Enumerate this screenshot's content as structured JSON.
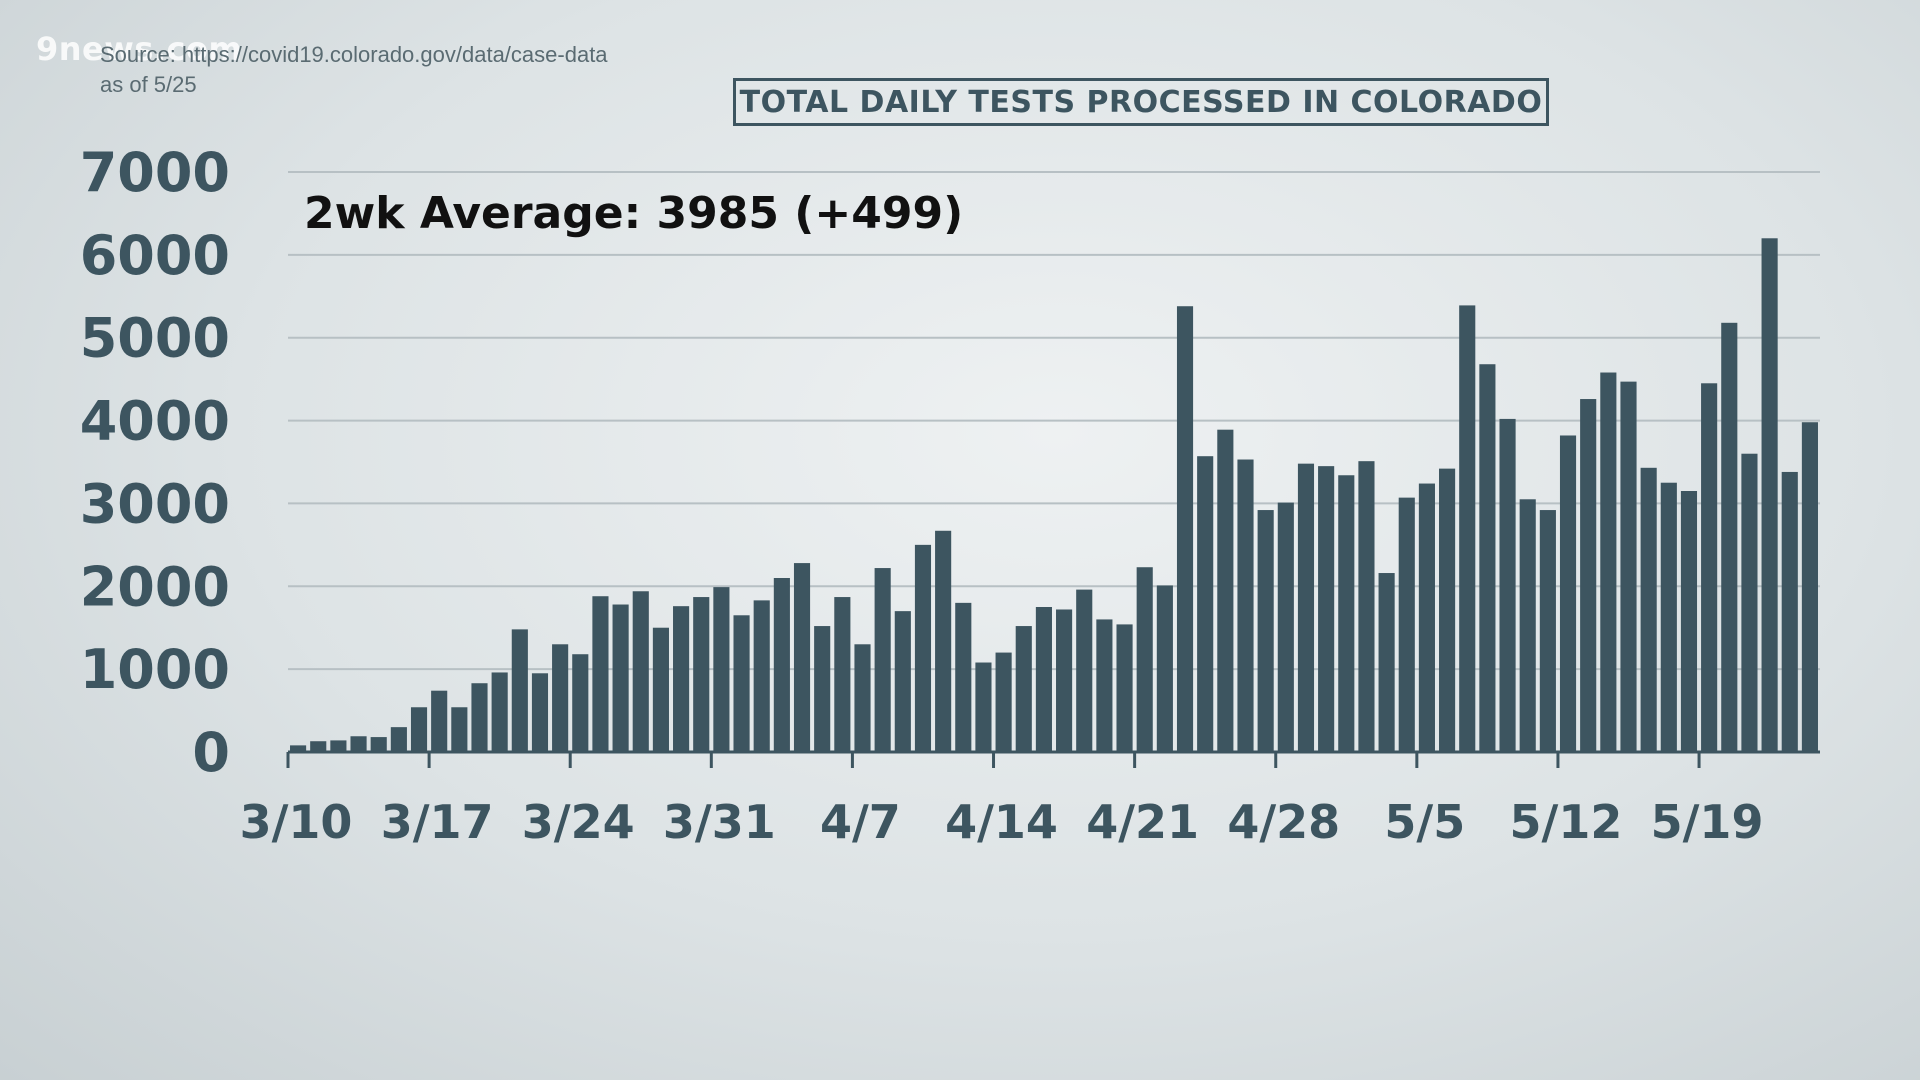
{
  "watermark": "9news.com",
  "source": {
    "line1": "Source: https://covid19.colorado.gov/data/case-data",
    "line2": "as of 5/25"
  },
  "chart_data": {
    "type": "bar",
    "title": "TOTAL DAILY TESTS PROCESSED IN COLORADO",
    "annotation": "2wk Average: 3985 (+499)",
    "xlabel": "",
    "ylabel": "",
    "ylim": [
      0,
      7000
    ],
    "yticks": [
      0,
      1000,
      2000,
      3000,
      4000,
      5000,
      6000,
      7000
    ],
    "xticks": [
      {
        "label": "3/10",
        "index": 0
      },
      {
        "label": "3/17",
        "index": 7
      },
      {
        "label": "3/24",
        "index": 14
      },
      {
        "label": "3/31",
        "index": 21
      },
      {
        "label": "4/7",
        "index": 28
      },
      {
        "label": "4/14",
        "index": 35
      },
      {
        "label": "4/21",
        "index": 42
      },
      {
        "label": "4/28",
        "index": 49
      },
      {
        "label": "5/5",
        "index": 56
      },
      {
        "label": "5/12",
        "index": 63
      },
      {
        "label": "5/19",
        "index": 70
      }
    ],
    "start_date": "3/10",
    "end_date": "5/25",
    "grid": true,
    "color": "#3d5560",
    "values": [
      80,
      130,
      140,
      190,
      180,
      300,
      540,
      740,
      540,
      830,
      960,
      1480,
      950,
      1300,
      1180,
      1880,
      1780,
      1940,
      1500,
      1760,
      1870,
      1990,
      1650,
      1830,
      2100,
      2280,
      1520,
      1870,
      1300,
      2220,
      1700,
      2500,
      2670,
      1800,
      1080,
      1200,
      1520,
      1750,
      1720,
      1960,
      1600,
      1540,
      2230,
      2010,
      5380,
      3570,
      3890,
      3530,
      2920,
      3010,
      3480,
      3450,
      3340,
      3510,
      2160,
      3070,
      3240,
      3420,
      5390,
      4680,
      4020,
      3050,
      2920,
      3820,
      4260,
      4580,
      4470,
      3430,
      3250,
      3150,
      4450,
      5180,
      3600,
      6200,
      3380,
      3980
    ]
  }
}
